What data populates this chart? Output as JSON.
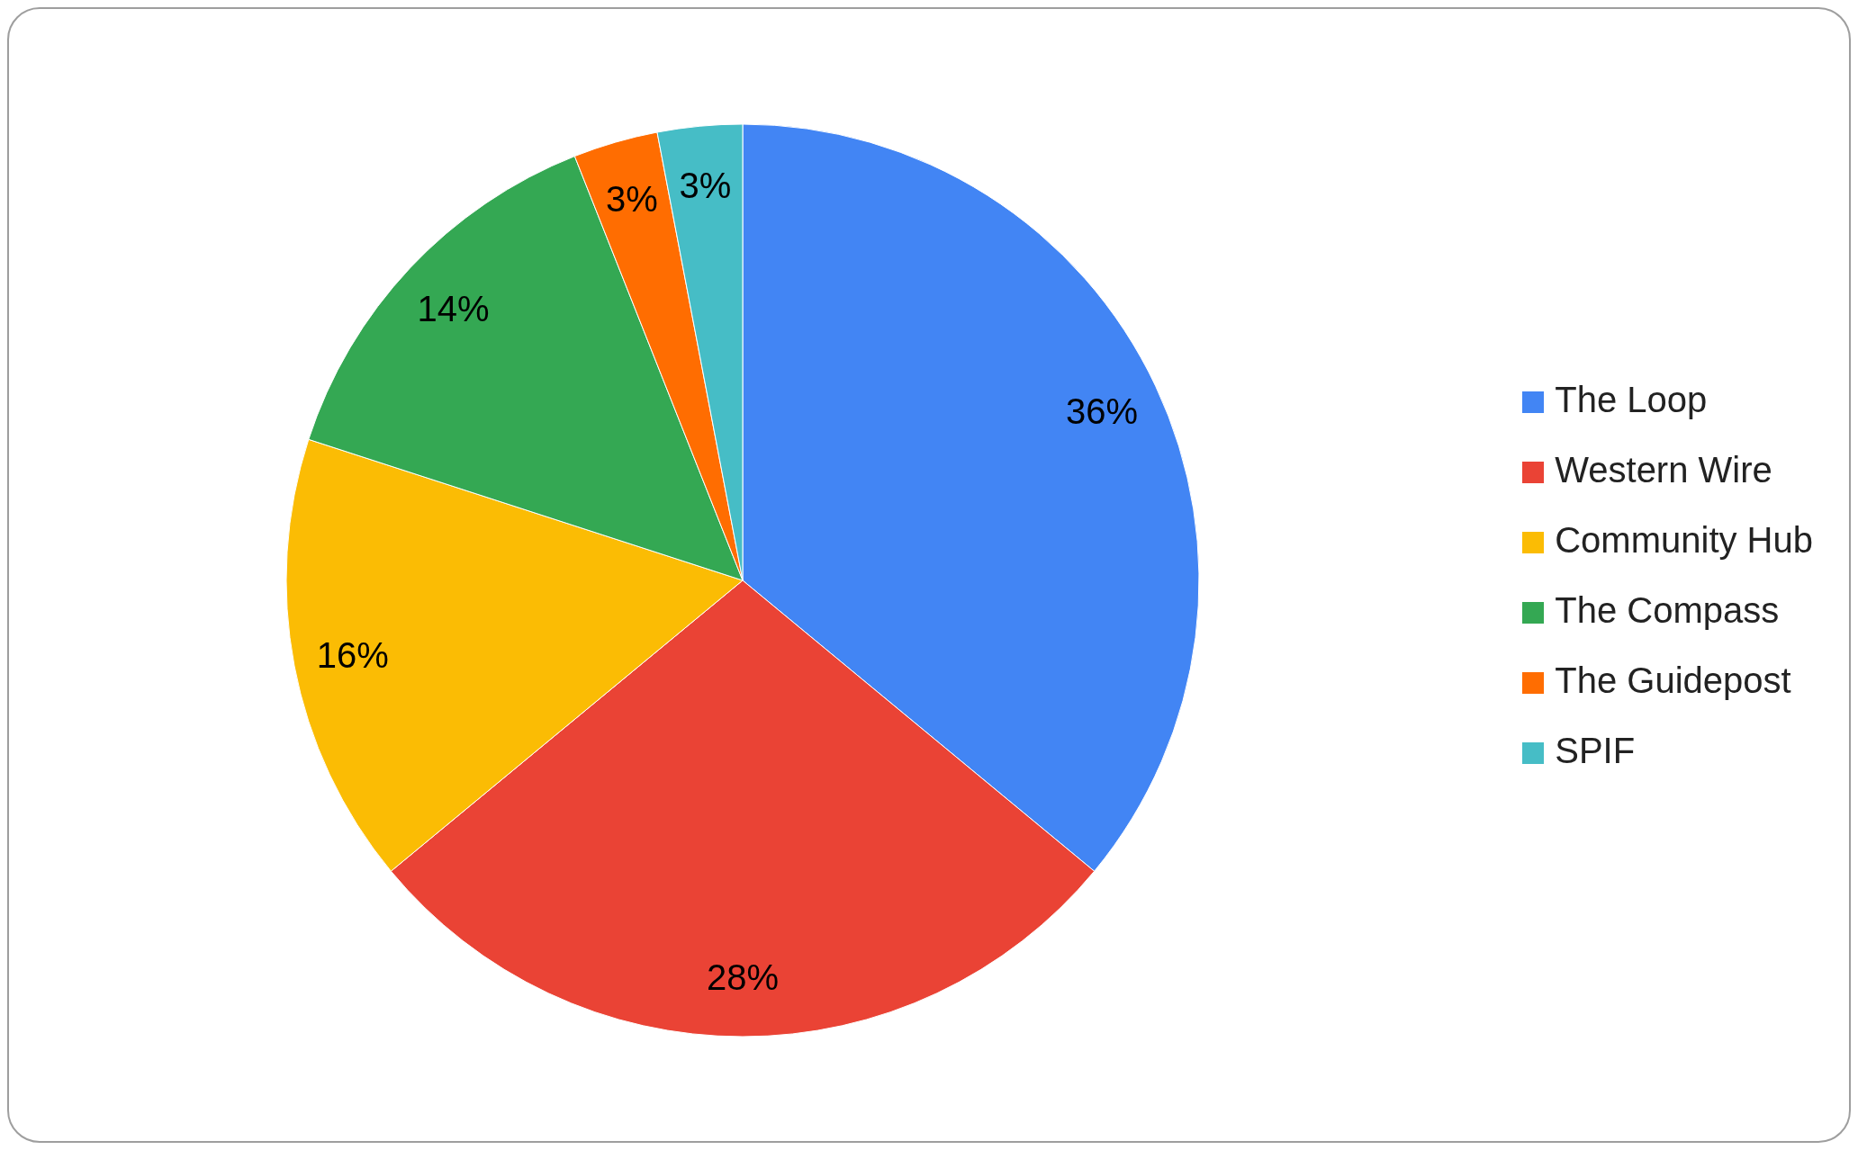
{
  "chart_data": {
    "type": "pie",
    "categories": [
      "The Loop",
      "Western Wire",
      "Community Hub",
      "The Compass",
      "The Guidepost",
      "SPIF"
    ],
    "values": [
      36,
      28,
      16,
      14,
      3,
      3
    ],
    "colors": [
      "#4285f4",
      "#ea4335",
      "#fbbc04",
      "#34a853",
      "#ff6d01",
      "#46bdc6"
    ],
    "value_labels": [
      "36%",
      "28%",
      "16%",
      "14%",
      "3%",
      "3%"
    ],
    "legend": "right"
  }
}
